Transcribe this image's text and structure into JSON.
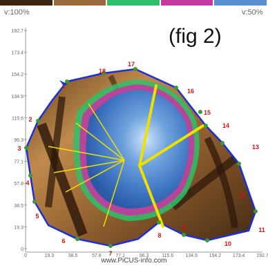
{
  "legend": {
    "left_label": "v:100%",
    "right_label": "v:50%",
    "colors": [
      "#3b2410",
      "#9a6a3c",
      "#2fbf6a",
      "#c23aa0",
      "#5a8fd0"
    ]
  },
  "figure_label": "(fig 2)",
  "y_ticks": [
    "192.7",
    "173.4",
    "154.2",
    "134.9",
    "115.6",
    "96.3",
    "77.1",
    "57.8",
    "38.5",
    "19.3",
    "0"
  ],
  "x_ticks": [
    "0",
    "19.3",
    "38.5",
    "57.8",
    "77.1",
    "96.3",
    "115.6",
    "134.9",
    "154.2",
    "173.4",
    "192.7"
  ],
  "sensors": [
    "1",
    "2",
    "3",
    "4",
    "5",
    "6",
    "7",
    "8",
    "9",
    "10",
    "11",
    "12",
    "13",
    "14",
    "15",
    "16",
    "17",
    "18"
  ],
  "footer": "www.PiCUS-info.com",
  "colors": {
    "outline": "#1a2fd8",
    "sensor_label": "#d21414",
    "crack_lines": "#f0e000",
    "sensor_dot": "#3a9a3a"
  }
}
